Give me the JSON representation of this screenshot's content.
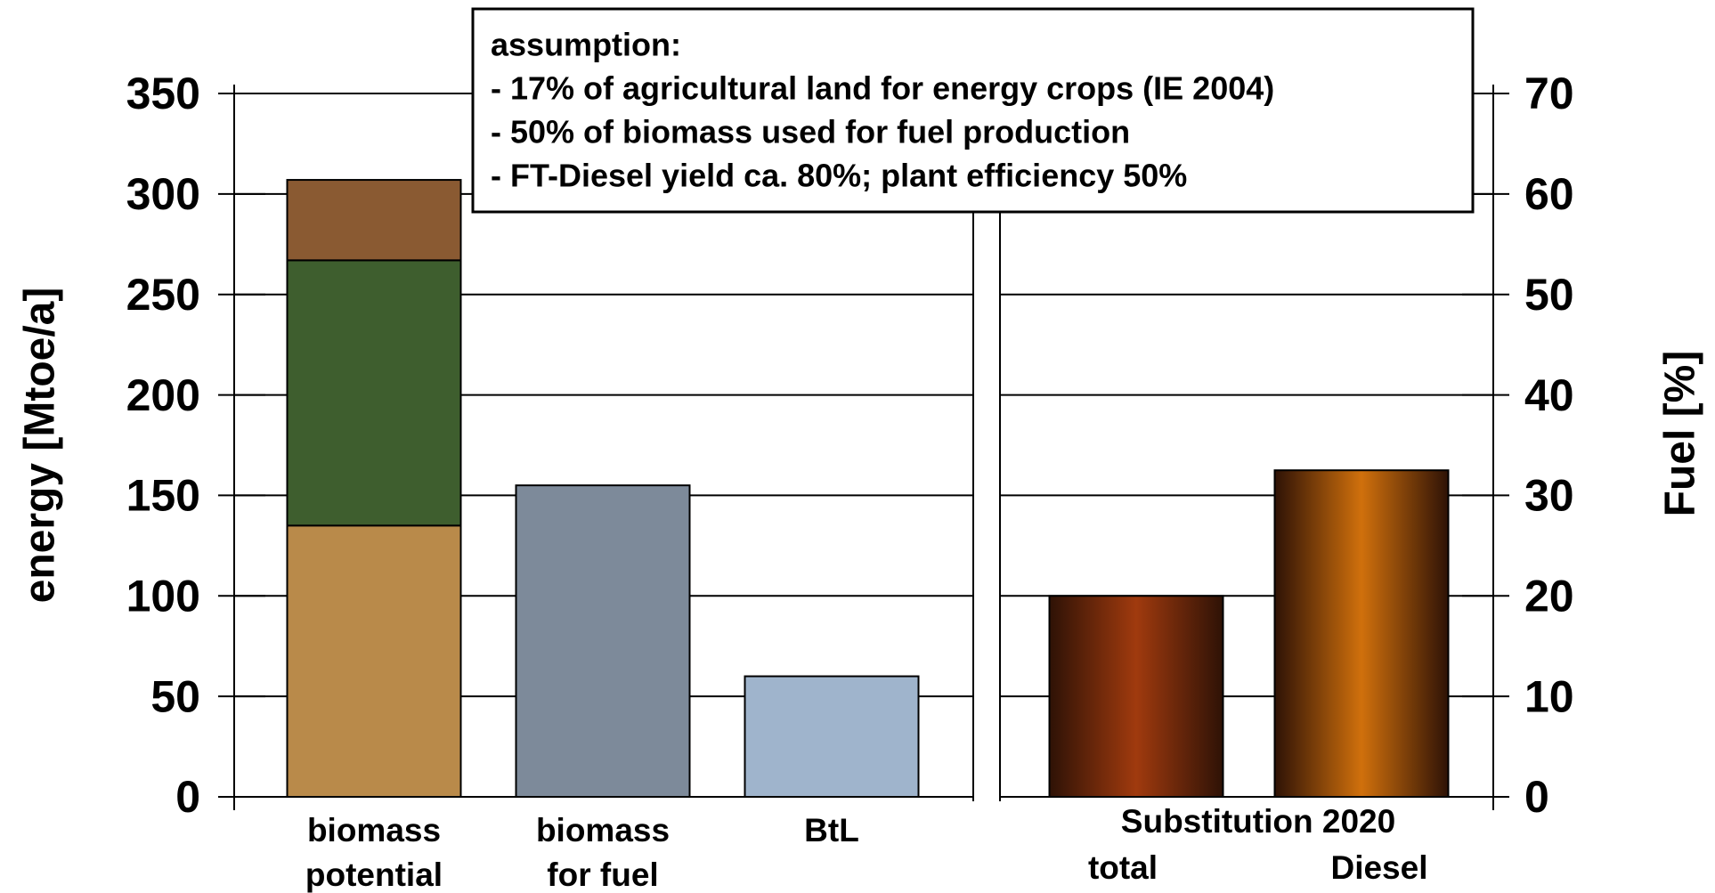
{
  "chart_data": {
    "type": "bar",
    "annotation": [
      "assumption:",
      "- 17% of agricultural land for energy crops (IE 2004)",
      "- 50% of biomass used for fuel production",
      "- FT-Diesel yield ca. 80%; plant efficiency 50%"
    ],
    "ylabel": "energy   [Mtoe/a]",
    "y2label": "Fuel [%]",
    "ylim": [
      0,
      350
    ],
    "yticks": [
      0,
      50,
      100,
      150,
      200,
      250,
      300,
      350
    ],
    "y2lim": [
      0,
      70
    ],
    "y2ticks": [
      0,
      10,
      20,
      30,
      40,
      50,
      60,
      70
    ],
    "categories": [
      [
        "biomass",
        "potential"
      ],
      [
        "biomass",
        "for fuel"
      ],
      [
        "BtL"
      ]
    ],
    "series": [
      {
        "colors": [
          "#b98a4a",
          "#7d8a9a",
          "#9fb4cc"
        ],
        "values": [
          135,
          155,
          60
        ]
      },
      {
        "colors": [
          "#3e5e2e",
          null,
          null
        ],
        "values": [
          132,
          null,
          null
        ]
      },
      {
        "colors": [
          "#8a5a32",
          null,
          null
        ],
        "values": [
          40,
          null,
          null
        ]
      }
    ],
    "group_label": "Substitution 2020",
    "series2": {
      "axis": "y2",
      "categories": [
        "total",
        "Diesel"
      ],
      "colors": [
        "#a03a0e",
        "#d0700c"
      ],
      "values": [
        20,
        32.5
      ]
    }
  }
}
